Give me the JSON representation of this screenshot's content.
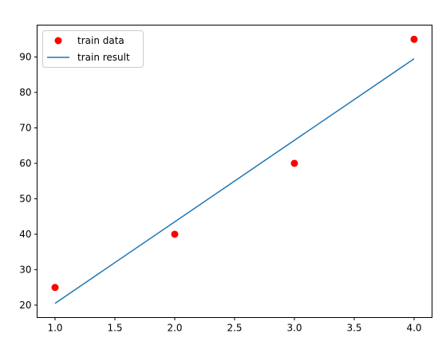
{
  "chart_data": {
    "type": "line",
    "title": "",
    "xlabel": "",
    "ylabel": "",
    "xlim": [
      0.85,
      4.15
    ],
    "ylim": [
      16.5,
      99.0
    ],
    "xticks": [
      "1.0",
      "1.5",
      "2.0",
      "2.5",
      "3.0",
      "3.5",
      "4.0"
    ],
    "yticks": [
      "20",
      "30",
      "40",
      "50",
      "60",
      "70",
      "80",
      "90"
    ],
    "grid": false,
    "legend_position": "upper-left",
    "series": [
      {
        "name": "train data",
        "kind": "scatter",
        "color": "#ff0000",
        "x": [
          1,
          2,
          3,
          4
        ],
        "y": [
          25,
          40,
          60,
          95
        ]
      },
      {
        "name": "train result",
        "kind": "line",
        "color": "#1f77b4",
        "x": [
          1,
          4
        ],
        "y": [
          20.5,
          89.5
        ]
      }
    ]
  }
}
